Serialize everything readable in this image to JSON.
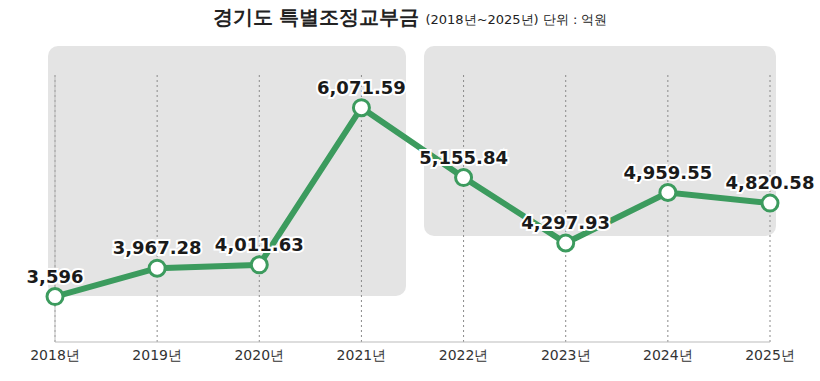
{
  "chart_data": {
    "type": "line",
    "title": "경기도 특별조정교부금",
    "subtitle": "(2018년~2025년) 단위 : 억원",
    "categories": [
      "2018년",
      "2019년",
      "2020년",
      "2021년",
      "2022년",
      "2023년",
      "2024년",
      "2025년"
    ],
    "values": [
      3596,
      3967.28,
      4011.63,
      6071.59,
      5155.84,
      4297.93,
      4959.55,
      4820.58
    ],
    "value_labels": [
      "3,596",
      "3,967.28",
      "4,011.63",
      "6,071.59",
      "5,155.84",
      "4,297.93",
      "4,959.55",
      "4,820.58"
    ],
    "color": "#3c9b5e",
    "marker": "circle",
    "line_style": "solid",
    "ylim": [
      3000,
      6500
    ],
    "grid": true,
    "data_labels": true,
    "tick_labels": "x"
  }
}
